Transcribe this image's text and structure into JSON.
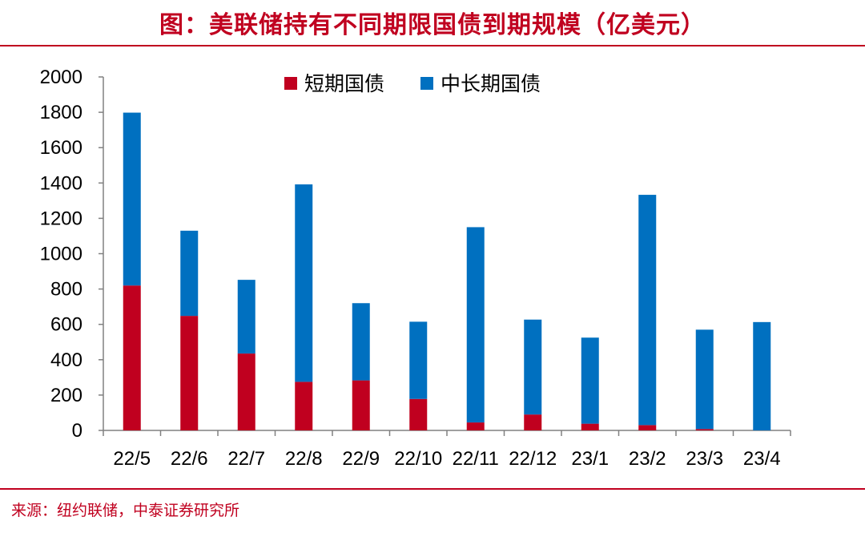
{
  "title": "图：美联储持有不同期限国债到期规模（亿美元）",
  "source": "来源：纽约联储，中泰证券研究所",
  "colors": {
    "short": "#c0001f",
    "long": "#0070c0",
    "accent": "#c0001f"
  },
  "chart_data": {
    "type": "bar",
    "stacked": true,
    "categories": [
      "22/5",
      "22/6",
      "22/7",
      "22/8",
      "22/9",
      "22/10",
      "22/11",
      "22/12",
      "23/1",
      "23/2",
      "23/3",
      "23/4"
    ],
    "series": [
      {
        "name": "短期国债",
        "values": [
          820,
          648,
          435,
          275,
          283,
          178,
          45,
          90,
          38,
          30,
          8,
          0
        ]
      },
      {
        "name": "中长期国债",
        "values": [
          978,
          482,
          417,
          1117,
          437,
          437,
          1105,
          537,
          487,
          1303,
          562,
          613
        ]
      }
    ],
    "yticks": [
      0,
      200,
      400,
      600,
      800,
      1000,
      1200,
      1400,
      1600,
      1800,
      2000
    ],
    "ylim": [
      0,
      2000
    ],
    "legend": "top-center",
    "grid": false
  }
}
